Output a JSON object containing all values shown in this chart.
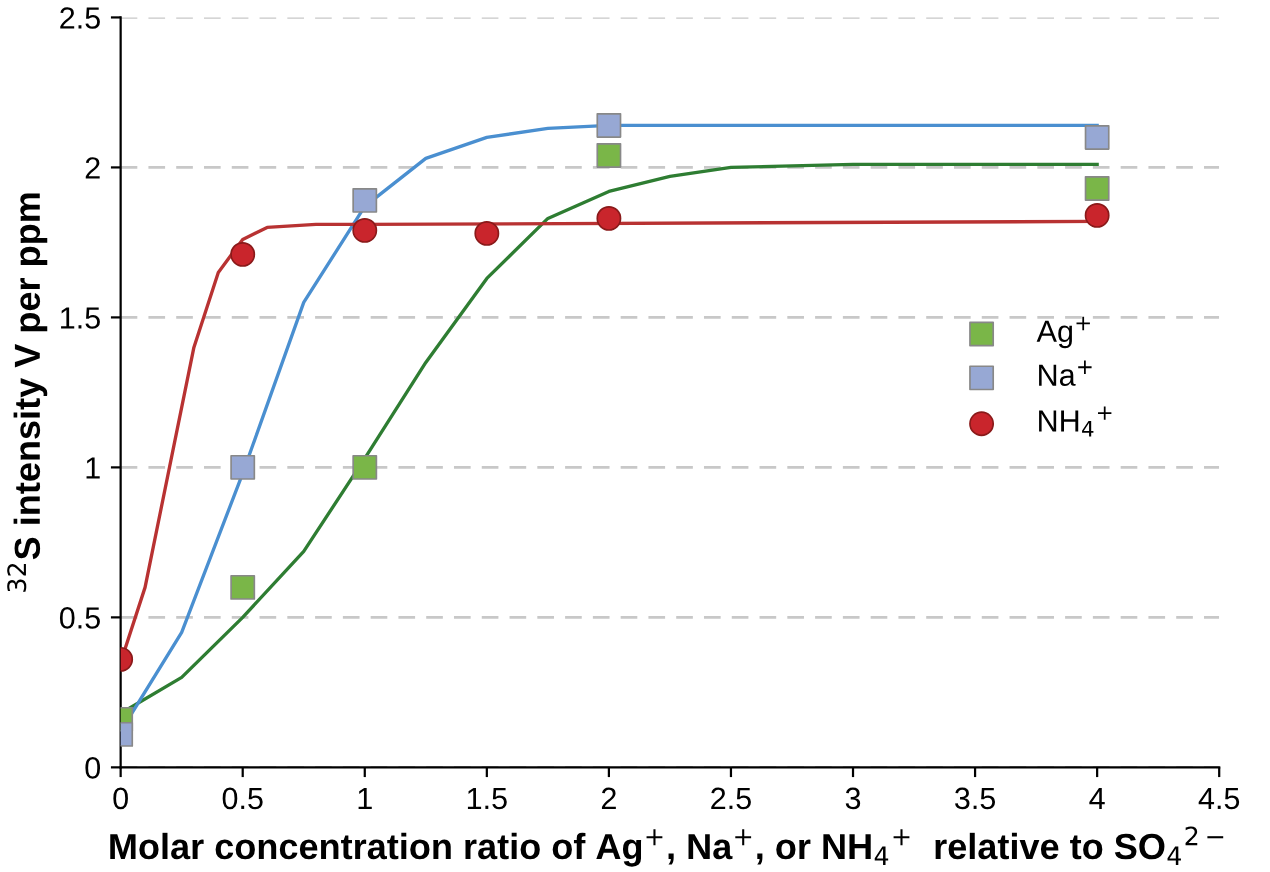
{
  "chart_data": {
    "type": "scatter",
    "xlabel": "Molar concentration ratio of Ag$^{+}$, Na$^{+}$, or NH$_{4}$$^{+}$  relative to SO$_{4}$$^{2−}$",
    "ylabel": "$^{32}$S intensity V per ppm",
    "xlim": [
      0,
      4.5
    ],
    "xticks": [
      0,
      0.5,
      1,
      1.5,
      2,
      2.5,
      3,
      3.5,
      4,
      4.5
    ],
    "ylim": [
      0,
      2.5
    ],
    "yticks": [
      0,
      0.5,
      1,
      1.5,
      2,
      2.5
    ],
    "grid": "y",
    "legend": "right",
    "series": [
      {
        "type": "line",
        "color": "#2e7d32",
        "x": [
          0,
          0.25,
          0.5,
          0.75,
          1,
          1.25,
          1.5,
          1.75,
          2,
          2.25,
          2.5,
          3,
          4
        ],
        "values": [
          0.18,
          0.3,
          0.5,
          0.72,
          1.03,
          1.35,
          1.63,
          1.83,
          1.92,
          1.97,
          2.0,
          2.01,
          2.01
        ]
      },
      {
        "type": "line",
        "color": "#4a8fd0",
        "x": [
          0,
          0.25,
          0.5,
          0.75,
          1,
          1.25,
          1.5,
          1.75,
          2,
          4
        ],
        "values": [
          0.12,
          0.45,
          0.98,
          1.55,
          1.87,
          2.03,
          2.1,
          2.13,
          2.14,
          2.14
        ]
      },
      {
        "type": "line",
        "color": "#b83232",
        "x": [
          0,
          0.1,
          0.2,
          0.3,
          0.4,
          0.5,
          0.6,
          0.8,
          1,
          4
        ],
        "values": [
          0.35,
          0.6,
          1.0,
          1.4,
          1.65,
          1.76,
          1.8,
          1.81,
          1.81,
          1.82
        ]
      },
      {
        "name": "Ag$^{+}$",
        "color": "#7ab648",
        "marker": "square",
        "x": [
          0,
          0.5,
          1,
          2,
          4
        ],
        "values": [
          0.16,
          0.6,
          1.0,
          2.04,
          1.93
        ]
      },
      {
        "name": "Na$^{+}$",
        "color": "#97a8d4",
        "marker": "square",
        "x": [
          0,
          0.5,
          1,
          2,
          4
        ],
        "values": [
          0.11,
          1.0,
          1.89,
          2.14,
          2.1
        ]
      },
      {
        "name": "NH$_{4}$$^{+}$",
        "color": "#c9252c",
        "marker": "circle",
        "x": [
          0,
          0.5,
          1,
          1.5,
          2,
          4
        ],
        "values": [
          0.36,
          1.71,
          1.79,
          1.78,
          1.83,
          1.84
        ]
      }
    ]
  }
}
